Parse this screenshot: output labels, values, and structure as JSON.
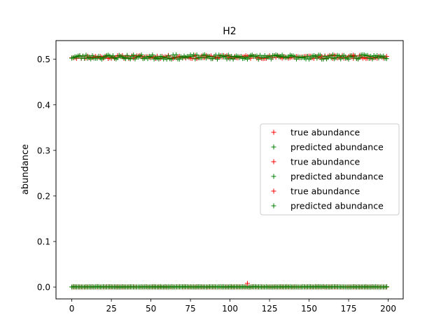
{
  "chart_data": {
    "type": "scatter",
    "title": "H2",
    "xlabel": "",
    "ylabel": "abundance",
    "xlim": [
      -10,
      209.5
    ],
    "ylim": [
      -0.026,
      0.541
    ],
    "xticks": [
      0,
      25,
      50,
      75,
      100,
      125,
      150,
      175,
      200
    ],
    "yticks": [
      0.0,
      0.1,
      0.2,
      0.3,
      0.4,
      0.5
    ],
    "ytick_labels": [
      "0.0",
      "0.1",
      "0.2",
      "0.3",
      "0.4",
      "0.5"
    ],
    "grid": false,
    "legend_placement": "center-right",
    "marker": "+",
    "n_points": 200,
    "series": [
      {
        "name": "true abundance",
        "color": "#ff0000",
        "level": 0.505,
        "jitter": 0.0035,
        "seed": 11
      },
      {
        "name": "predicted abundance",
        "color": "#008000",
        "level": 0.505,
        "jitter": 0.005,
        "seed": 23
      },
      {
        "name": "true abundance",
        "color": "#ff0000",
        "level": 0.0,
        "jitter": 0.0008,
        "seed": 37
      },
      {
        "name": "predicted abundance",
        "color": "#008000",
        "level": 0.0,
        "jitter": 0.0012,
        "seed": 41
      },
      {
        "name": "true abundance",
        "color": "#ff0000",
        "level": 0.0,
        "jitter": 0.0006,
        "seed": 53
      },
      {
        "name": "predicted abundance",
        "color": "#008000",
        "level": 0.0,
        "jitter": 0.0009,
        "seed": 67
      }
    ]
  }
}
